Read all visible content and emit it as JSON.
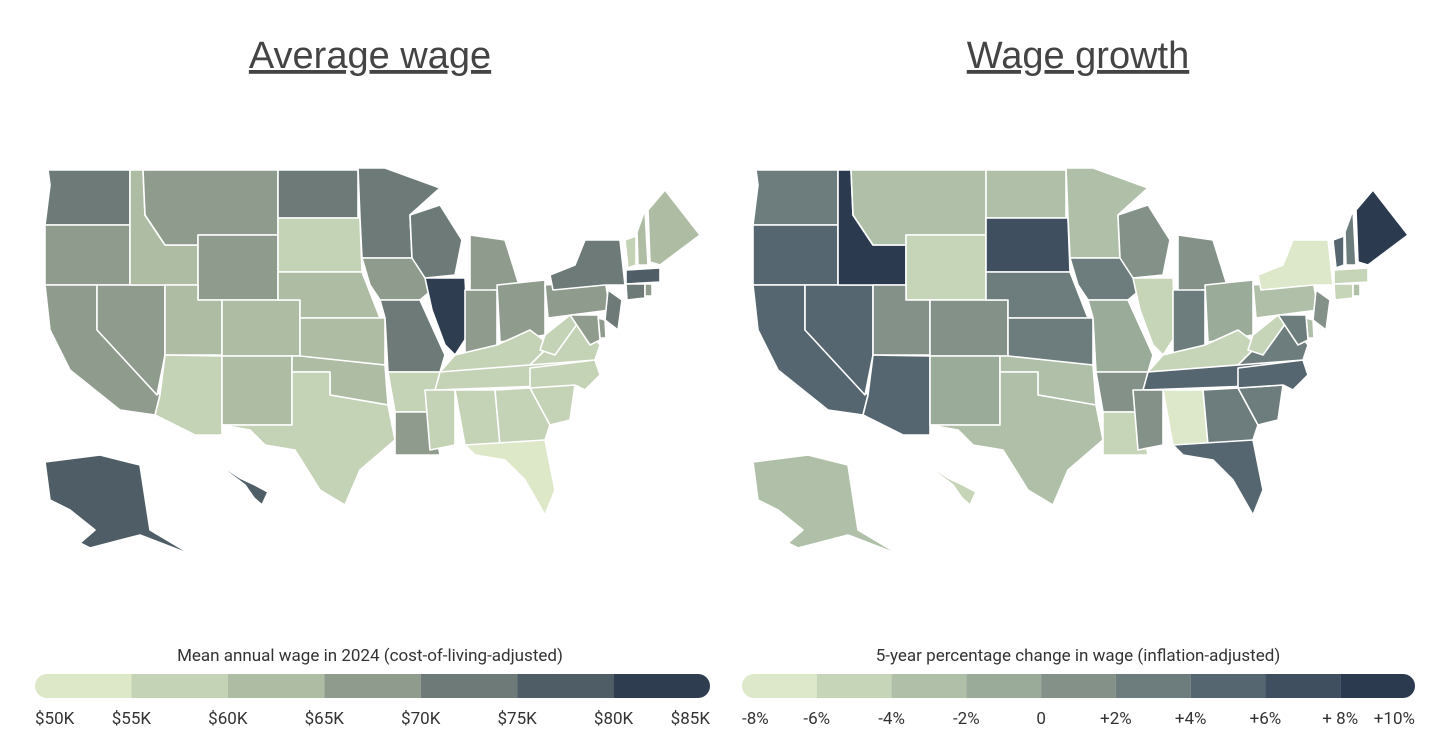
{
  "maps": [
    {
      "title": "Average wage",
      "legend_title": "Mean annual wage in 2024 (cost-of-living-adjusted)",
      "ticks": [
        {
          "value": 50000,
          "label": "$50K"
        },
        {
          "value": 55000,
          "label": "$55K"
        },
        {
          "value": 60000,
          "label": "$60K"
        },
        {
          "value": 65000,
          "label": "$65K"
        },
        {
          "value": 70000,
          "label": "$70K"
        },
        {
          "value": 75000,
          "label": "$75K"
        },
        {
          "value": 80000,
          "label": "$80K"
        },
        {
          "value": 85000,
          "label": "$85K"
        }
      ],
      "colors": [
        "#dde8c9",
        "#c4d2b6",
        "#aebca4",
        "#8f9c8d",
        "#6d7a78",
        "#4f5e66",
        "#2e3d50"
      ],
      "values": [
        72500,
        67500,
        67500,
        67500,
        62500,
        67500,
        67500,
        62500,
        62500,
        57500,
        62500,
        72500,
        57500,
        62500,
        62500,
        62500,
        57500,
        72500,
        67500,
        72500,
        57500,
        67500,
        72500,
        82500,
        67500,
        67500,
        67500,
        57500,
        57500,
        57500,
        57500,
        57500,
        52500,
        57500,
        57500,
        57500,
        57500,
        67500,
        72500,
        57500,
        62500,
        62500,
        77500,
        72500,
        67500,
        72500,
        67500,
        67500,
        77500,
        77500
      ]
    },
    {
      "title": "Wage growth",
      "legend_title": "5-year percentage change in wage (inflation-adjusted)",
      "ticks": [
        {
          "value": -8,
          "label": "-8%"
        },
        {
          "value": -6,
          "label": "-6%"
        },
        {
          "value": -4,
          "label": "-4%"
        },
        {
          "value": -2,
          "label": "-2%"
        },
        0,
        {
          "value": 2,
          "label": "+2%"
        },
        {
          "value": 4,
          "label": "+4%"
        },
        {
          "value": 6,
          "label": "+6%"
        },
        {
          "value": 8,
          "label": "+ 8%"
        },
        {
          "value": 10,
          "label": "+10%"
        }
      ],
      "colors": [
        "#dce8c9",
        "#c6d4b8",
        "#b0c0a8",
        "#9aab99",
        "#839189",
        "#6d7c7c",
        "#566670",
        "#404f60",
        "#2b3a4f"
      ],
      "values": [
        3,
        5,
        5,
        5,
        9,
        -3,
        -5,
        1,
        1,
        5,
        -1,
        -3,
        7,
        3,
        3,
        -3,
        -3,
        -3,
        3,
        -1,
        1,
        -5,
        1,
        -5,
        1,
        3,
        -1,
        -5,
        5,
        1,
        -7,
        3,
        5,
        3,
        5,
        3,
        -5,
        -3,
        -7,
        5,
        3,
        9,
        -5,
        -5,
        -3,
        1,
        -3,
        3,
        -3,
        -5
      ]
    }
  ]
}
